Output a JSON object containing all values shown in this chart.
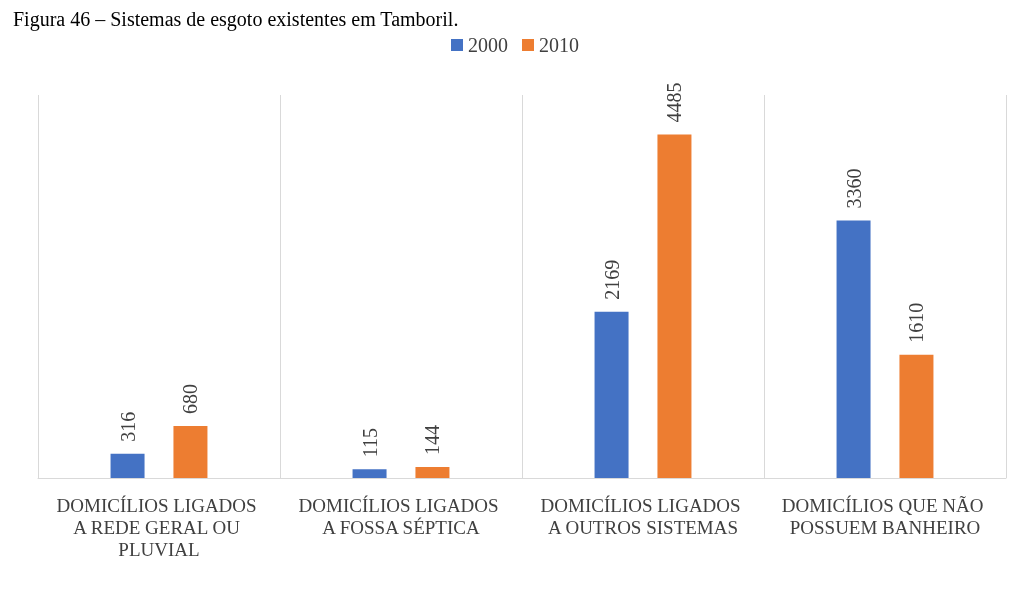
{
  "chart_data": {
    "type": "bar",
    "title": "Figura 46 – Sistemas de esgoto existentes em Tamboril.",
    "categories": [
      "DOMICÍLIOS LIGADOS A REDE GERAL OU PLUVIAL",
      "DOMICÍLIOS LIGADOS A FOSSA SÉPTICA",
      "DOMICÍLIOS LIGADOS A OUTROS SISTEMAS",
      "DOMICÍLIOS QUE NÃO POSSUEM BANHEIRO"
    ],
    "series": [
      {
        "name": "2000",
        "color": "#4472c4",
        "values": [
          316,
          115,
          2169,
          3360
        ]
      },
      {
        "name": "2010",
        "color": "#ed7d31",
        "values": [
          680,
          144,
          4485,
          1610
        ]
      }
    ],
    "data_labels": true,
    "grid": "x",
    "legend": "top",
    "tick_labels": "x"
  }
}
